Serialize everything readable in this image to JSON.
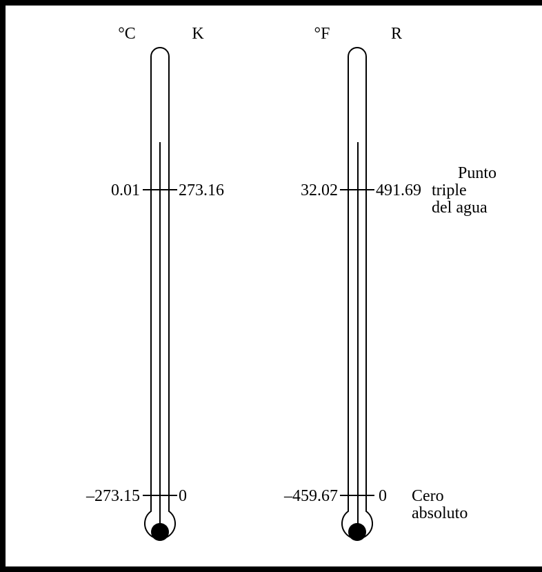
{
  "thermometer_left": {
    "unit_left": "°C",
    "unit_right": "K",
    "triple_point_left": "0.01",
    "triple_point_right": "273.16",
    "zero_left": "–273.15",
    "zero_right": "0"
  },
  "thermometer_right": {
    "unit_left": "°F",
    "unit_right": "R",
    "triple_point_left": "32.02",
    "triple_point_right": "491.69",
    "zero_left": "–459.67",
    "zero_right": "0"
  },
  "annotations": {
    "triple_point": [
      "Punto",
      "triple",
      "del agua"
    ],
    "absolute_zero": [
      "Cero",
      "absoluto"
    ]
  },
  "colors": {
    "ink": "#000000",
    "background": "#ffffff"
  }
}
